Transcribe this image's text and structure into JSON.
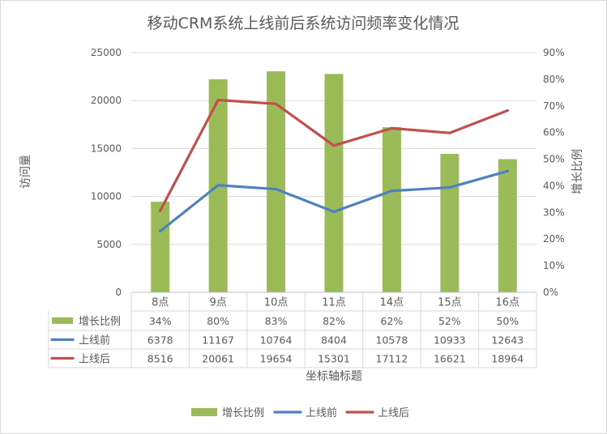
{
  "chart_data": {
    "type": "bar",
    "title": "移动CRM系统上线前后系统访问频率变化情况",
    "xlabel": "坐标轴标题",
    "ylabel_left": "访问量",
    "ylabel_right": "增长比例",
    "categories": [
      "8点",
      "9点",
      "10点",
      "11点",
      "14点",
      "15点",
      "16点"
    ],
    "y_left": {
      "min": 0,
      "max": 25000,
      "ticks": [
        "0",
        "5000",
        "10000",
        "15000",
        "20000",
        "25000"
      ]
    },
    "y_right": {
      "min": 0,
      "max": 0.9,
      "ticks": [
        "0%",
        "10%",
        "20%",
        "30%",
        "40%",
        "50%",
        "60%",
        "70%",
        "80%",
        "90%"
      ]
    },
    "grid": true,
    "legend": "bottom",
    "series": [
      {
        "name": "增长比例",
        "kind": "bar",
        "axis": "right",
        "color": "#9bbb59",
        "values": [
          0.34,
          0.8,
          0.83,
          0.82,
          0.62,
          0.52,
          0.5
        ],
        "labels": [
          "34%",
          "80%",
          "83%",
          "82%",
          "62%",
          "52%",
          "50%"
        ]
      },
      {
        "name": "上线前",
        "kind": "line",
        "axis": "left",
        "color": "#4f81bd",
        "values": [
          6378,
          11167,
          10764,
          8404,
          10578,
          10933,
          12643
        ],
        "labels": [
          "6378",
          "11167",
          "10764",
          "8404",
          "10578",
          "10933",
          "12643"
        ]
      },
      {
        "name": "上线后",
        "kind": "line",
        "axis": "left",
        "color": "#c0504d",
        "values": [
          8516,
          20061,
          19654,
          15301,
          17112,
          16621,
          18964
        ],
        "labels": [
          "8516",
          "20061",
          "19654",
          "15301",
          "17112",
          "16621",
          "18964"
        ]
      }
    ]
  }
}
